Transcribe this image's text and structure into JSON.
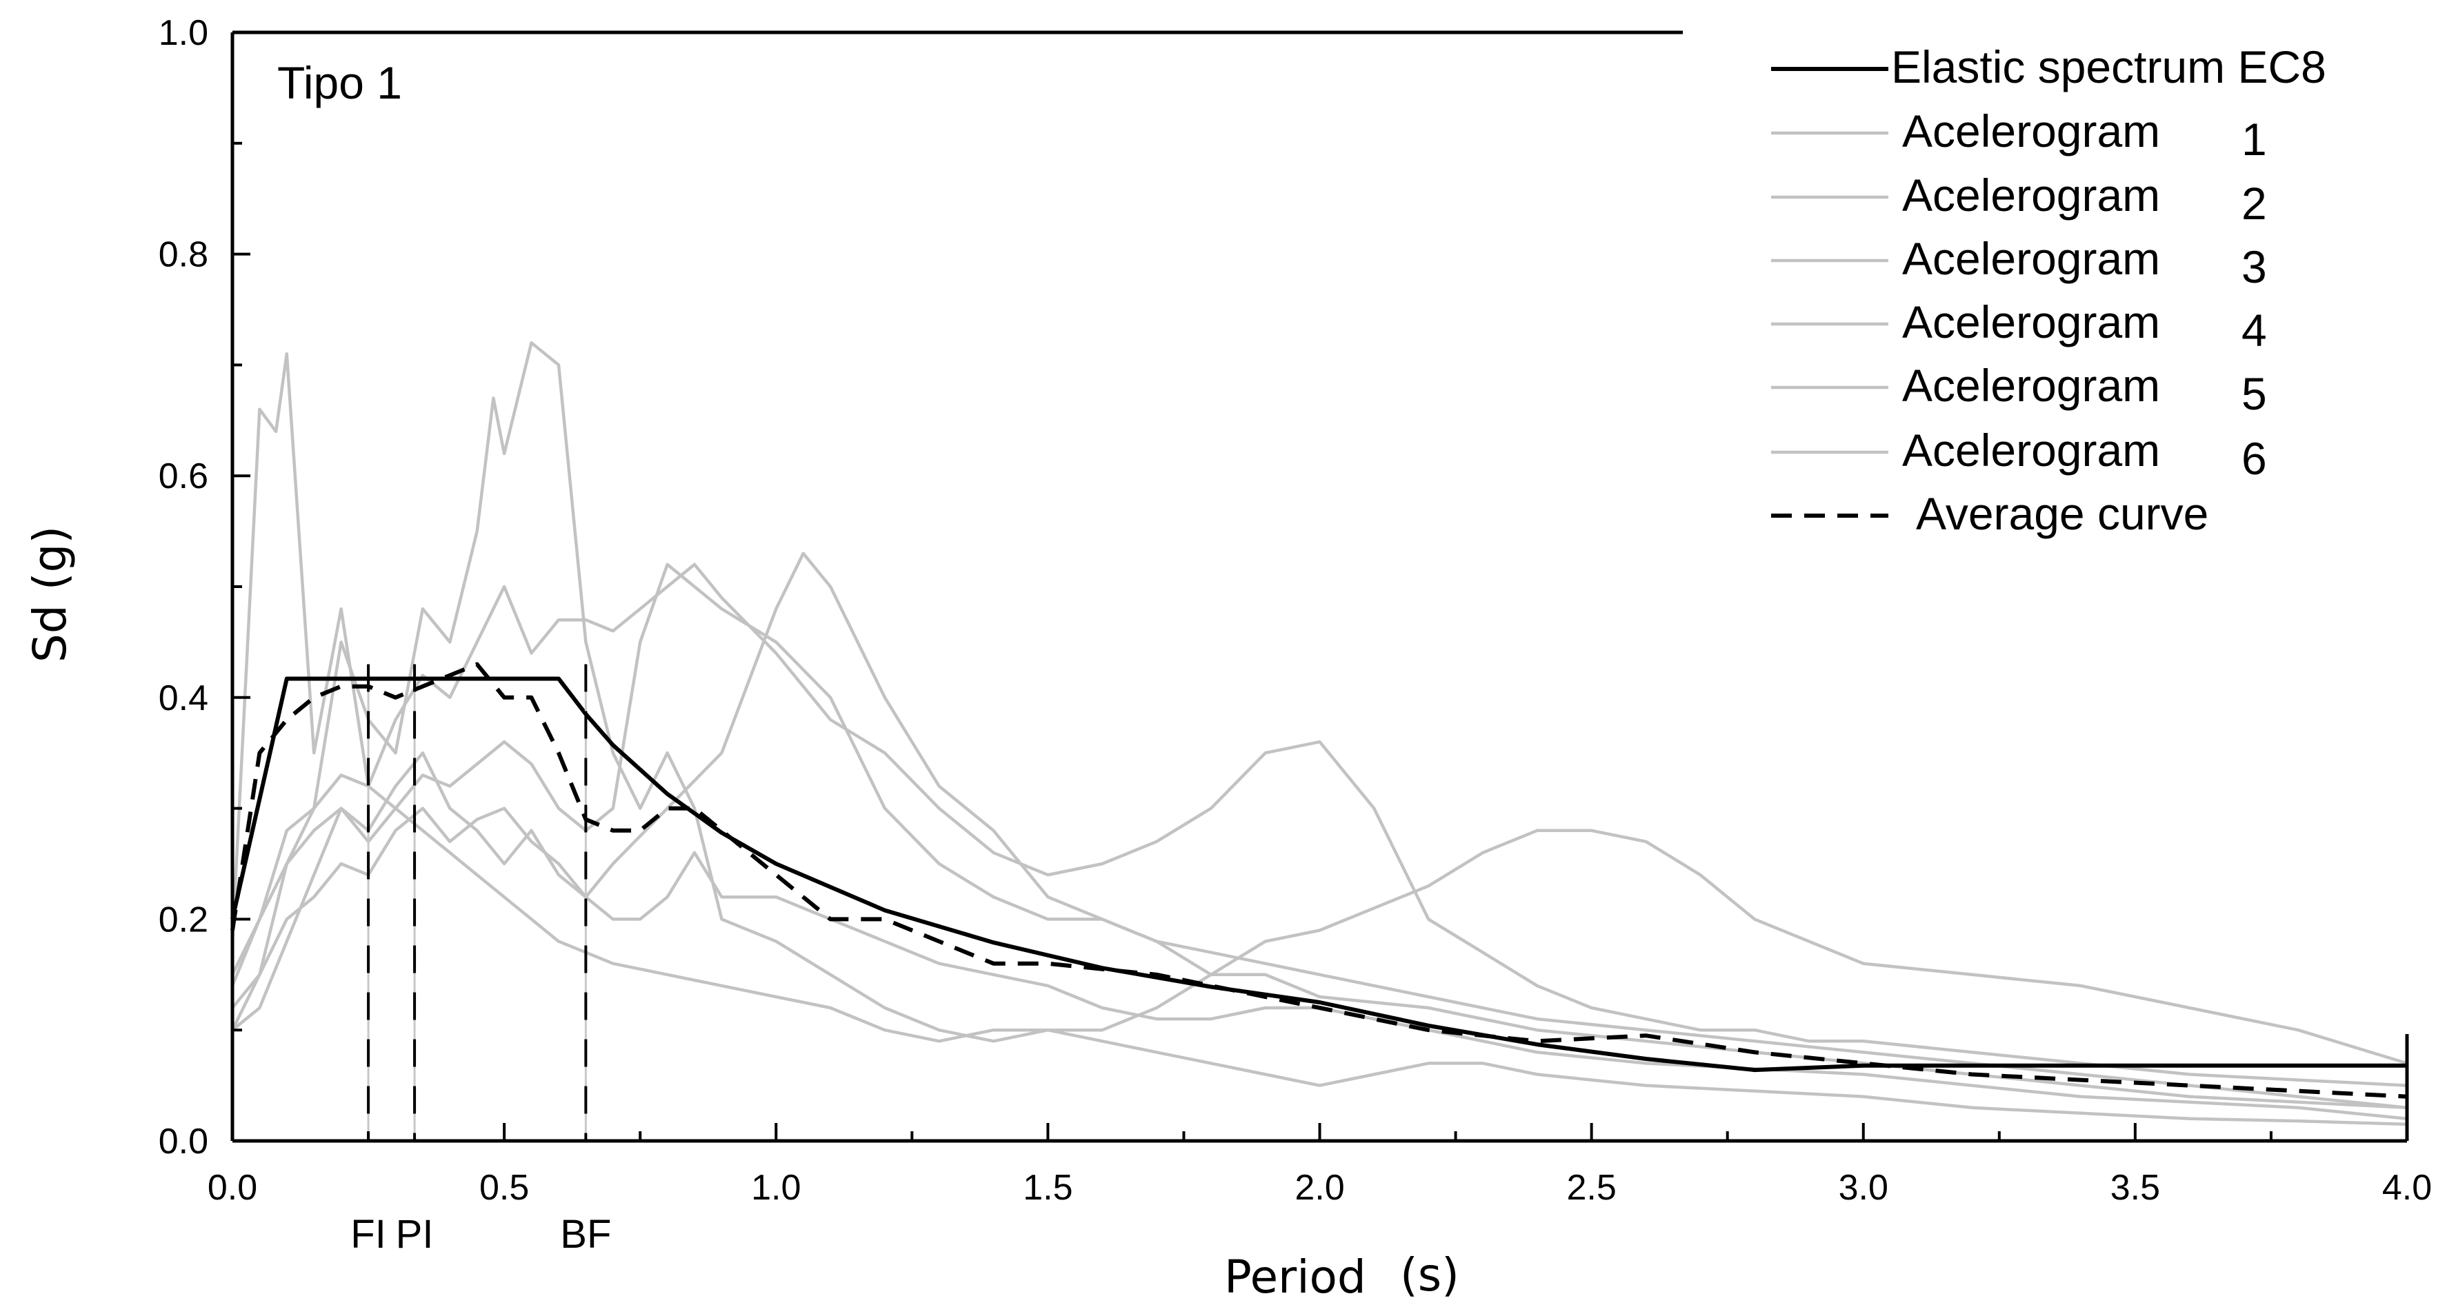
{
  "chart_data": {
    "type": "line",
    "panel_title": "Tipo 1",
    "xlabel": "Period",
    "xunit": "(s)",
    "ylabel": "Sd (g)",
    "xlim": [
      0,
      4
    ],
    "ylim": [
      0,
      1
    ],
    "xticks": [
      0,
      0.5,
      1,
      1.5,
      2,
      2.5,
      3,
      3.5,
      4
    ],
    "xtick_labels": [
      "0.0",
      "0.5",
      "1.0",
      "1.5",
      "2.0",
      "2.5",
      "3.0",
      "3.5",
      "4.0"
    ],
    "yticks": [
      0,
      0.2,
      0.4,
      0.6,
      0.8,
      1.0
    ],
    "ytick_labels": [
      "0.0",
      "0.2",
      "0.4",
      "0.6",
      "0.8",
      "1.0"
    ],
    "legend_position": "top-right",
    "markers": [
      {
        "label": "FI",
        "x": 0.25
      },
      {
        "label": "PI",
        "x": 0.335
      },
      {
        "label": "BF",
        "x": 0.65
      }
    ],
    "series": [
      {
        "name": "Elastic spectrum EC8",
        "legend_label": "Elastic spectrum EC8",
        "legend_suffix": "",
        "style": "solid",
        "color": "#000000",
        "x": [
          0,
          0.1,
          0.6,
          0.65,
          0.7,
          0.8,
          0.9,
          1.0,
          1.2,
          1.4,
          1.6,
          1.8,
          2.0,
          2.2,
          2.4,
          2.6,
          2.8,
          3.0,
          3.5,
          4.0
        ],
        "y": [
          0.2,
          0.417,
          0.417,
          0.385,
          0.357,
          0.313,
          0.278,
          0.25,
          0.208,
          0.179,
          0.156,
          0.139,
          0.125,
          0.104,
          0.087,
          0.074,
          0.064,
          0.068,
          0.068,
          0.068
        ]
      },
      {
        "name": "Acelerogram 1",
        "legend_label": "Acelerogram",
        "legend_suffix": "1",
        "style": "solid",
        "color": "#c2c2c2",
        "x": [
          0,
          0.05,
          0.1,
          0.15,
          0.2,
          0.25,
          0.3,
          0.35,
          0.4,
          0.45,
          0.5,
          0.55,
          0.6,
          0.65,
          0.7,
          0.75,
          0.8,
          0.85,
          0.9,
          1.0,
          1.1,
          1.2,
          1.3,
          1.4,
          1.5,
          1.6,
          1.7,
          1.8,
          1.9,
          2.0,
          2.1,
          2.2,
          2.3,
          2.4,
          2.5,
          2.6,
          2.7,
          2.8,
          2.9,
          3.0,
          3.2,
          3.4,
          3.6,
          3.8,
          4.0
        ],
        "y": [
          0.15,
          0.2,
          0.28,
          0.3,
          0.33,
          0.32,
          0.38,
          0.42,
          0.4,
          0.45,
          0.5,
          0.44,
          0.47,
          0.47,
          0.46,
          0.48,
          0.5,
          0.52,
          0.49,
          0.44,
          0.38,
          0.35,
          0.3,
          0.26,
          0.24,
          0.25,
          0.27,
          0.3,
          0.35,
          0.36,
          0.3,
          0.2,
          0.17,
          0.14,
          0.12,
          0.11,
          0.1,
          0.1,
          0.09,
          0.09,
          0.08,
          0.07,
          0.06,
          0.055,
          0.05
        ]
      },
      {
        "name": "Acelerogram 2",
        "legend_label": "Acelerogram",
        "legend_suffix": "2",
        "style": "solid",
        "color": "#c2c2c2",
        "x": [
          0,
          0.05,
          0.08,
          0.1,
          0.15,
          0.2,
          0.25,
          0.3,
          0.35,
          0.4,
          0.45,
          0.5,
          0.55,
          0.6,
          0.65,
          0.7,
          0.75,
          0.8,
          0.9,
          1.0,
          1.1,
          1.2,
          1.3,
          1.4,
          1.5,
          1.6,
          1.7,
          1.8,
          1.9,
          2.0,
          2.2,
          2.4,
          2.6,
          2.8,
          3.0,
          3.2,
          3.4,
          3.6,
          3.8,
          4.0
        ],
        "y": [
          0.18,
          0.66,
          0.64,
          0.71,
          0.35,
          0.48,
          0.32,
          0.3,
          0.33,
          0.32,
          0.34,
          0.36,
          0.34,
          0.3,
          0.28,
          0.3,
          0.45,
          0.52,
          0.48,
          0.45,
          0.4,
          0.3,
          0.25,
          0.22,
          0.2,
          0.2,
          0.18,
          0.15,
          0.15,
          0.13,
          0.12,
          0.1,
          0.09,
          0.08,
          0.07,
          0.06,
          0.05,
          0.04,
          0.035,
          0.03
        ]
      },
      {
        "name": "Acelerogram 3",
        "legend_label": "Acelerogram",
        "legend_suffix": "3",
        "style": "solid",
        "color": "#c2c2c2",
        "x": [
          0,
          0.05,
          0.1,
          0.15,
          0.2,
          0.25,
          0.3,
          0.35,
          0.4,
          0.45,
          0.48,
          0.5,
          0.55,
          0.6,
          0.65,
          0.7,
          0.75,
          0.8,
          0.85,
          0.9,
          1.0,
          1.1,
          1.2,
          1.3,
          1.4,
          1.5,
          1.6,
          1.7,
          1.8,
          1.9,
          2.0,
          2.1,
          2.2,
          2.3,
          2.4,
          2.5,
          2.6,
          2.7,
          2.8,
          3.0,
          3.2,
          3.4,
          3.6,
          3.8,
          4.0
        ],
        "y": [
          0.12,
          0.15,
          0.25,
          0.3,
          0.45,
          0.38,
          0.35,
          0.48,
          0.45,
          0.55,
          0.67,
          0.62,
          0.72,
          0.7,
          0.45,
          0.35,
          0.3,
          0.35,
          0.3,
          0.2,
          0.18,
          0.15,
          0.12,
          0.1,
          0.09,
          0.1,
          0.1,
          0.12,
          0.15,
          0.18,
          0.19,
          0.21,
          0.23,
          0.26,
          0.28,
          0.28,
          0.27,
          0.24,
          0.2,
          0.16,
          0.15,
          0.14,
          0.12,
          0.1,
          0.07
        ]
      },
      {
        "name": "Acelerogram 4",
        "legend_label": "Acelerogram",
        "legend_suffix": "4",
        "style": "solid",
        "color": "#c2c2c2",
        "x": [
          0,
          0.05,
          0.1,
          0.15,
          0.2,
          0.25,
          0.3,
          0.35,
          0.4,
          0.45,
          0.5,
          0.55,
          0.6,
          0.65,
          0.7,
          0.8,
          0.9,
          1.0,
          1.05,
          1.1,
          1.2,
          1.3,
          1.4,
          1.5,
          1.6,
          1.7,
          1.8,
          1.9,
          2.0,
          2.2,
          2.4,
          2.6,
          2.8,
          3.0,
          3.2,
          3.4,
          3.6,
          3.8,
          4.0
        ],
        "y": [
          0.14,
          0.2,
          0.25,
          0.28,
          0.3,
          0.28,
          0.32,
          0.35,
          0.3,
          0.28,
          0.25,
          0.28,
          0.24,
          0.22,
          0.25,
          0.3,
          0.35,
          0.48,
          0.53,
          0.5,
          0.4,
          0.32,
          0.28,
          0.22,
          0.2,
          0.18,
          0.17,
          0.16,
          0.15,
          0.13,
          0.11,
          0.1,
          0.09,
          0.08,
          0.07,
          0.06,
          0.05,
          0.04,
          0.03
        ]
      },
      {
        "name": "Acelerogram 5",
        "legend_label": "Acelerogram",
        "legend_suffix": "5",
        "style": "solid",
        "color": "#c2c2c2",
        "x": [
          0,
          0.05,
          0.1,
          0.15,
          0.2,
          0.25,
          0.3,
          0.35,
          0.4,
          0.45,
          0.5,
          0.55,
          0.6,
          0.65,
          0.7,
          0.75,
          0.8,
          0.85,
          0.9,
          1.0,
          1.1,
          1.2,
          1.3,
          1.4,
          1.5,
          1.6,
          1.7,
          1.8,
          1.9,
          2.0,
          2.2,
          2.4,
          2.6,
          2.8,
          3.0,
          3.2,
          3.4,
          3.6,
          3.8,
          4.0
        ],
        "y": [
          0.1,
          0.15,
          0.2,
          0.22,
          0.25,
          0.24,
          0.28,
          0.3,
          0.27,
          0.29,
          0.3,
          0.27,
          0.25,
          0.22,
          0.2,
          0.2,
          0.22,
          0.26,
          0.22,
          0.22,
          0.2,
          0.18,
          0.16,
          0.15,
          0.14,
          0.12,
          0.11,
          0.11,
          0.12,
          0.12,
          0.1,
          0.08,
          0.07,
          0.065,
          0.06,
          0.05,
          0.04,
          0.035,
          0.03,
          0.02
        ]
      },
      {
        "name": "Acelerogram 6",
        "legend_label": "Acelerogram",
        "legend_suffix": "6",
        "style": "solid",
        "color": "#c2c2c2",
        "x": [
          0,
          0.05,
          0.1,
          0.15,
          0.2,
          0.25,
          0.3,
          0.35,
          0.4,
          0.45,
          0.5,
          0.55,
          0.6,
          0.65,
          0.7,
          0.8,
          0.9,
          1.0,
          1.1,
          1.2,
          1.3,
          1.4,
          1.5,
          1.6,
          1.7,
          1.8,
          1.9,
          2.0,
          2.1,
          2.2,
          2.3,
          2.4,
          2.6,
          2.8,
          3.0,
          3.2,
          3.4,
          3.6,
          3.8,
          4.0
        ],
        "y": [
          0.1,
          0.12,
          0.18,
          0.24,
          0.3,
          0.27,
          0.3,
          0.28,
          0.26,
          0.24,
          0.22,
          0.2,
          0.18,
          0.17,
          0.16,
          0.15,
          0.14,
          0.13,
          0.12,
          0.1,
          0.09,
          0.1,
          0.1,
          0.09,
          0.08,
          0.07,
          0.06,
          0.05,
          0.06,
          0.07,
          0.07,
          0.06,
          0.05,
          0.045,
          0.04,
          0.03,
          0.025,
          0.02,
          0.018,
          0.015
        ]
      },
      {
        "name": "Average curve",
        "legend_label": "Average curve",
        "legend_suffix": "",
        "style": "dashed",
        "color": "#000000",
        "x": [
          0,
          0.05,
          0.1,
          0.15,
          0.2,
          0.25,
          0.3,
          0.35,
          0.4,
          0.45,
          0.5,
          0.55,
          0.6,
          0.65,
          0.7,
          0.75,
          0.8,
          0.85,
          0.9,
          1.0,
          1.1,
          1.2,
          1.3,
          1.4,
          1.5,
          1.6,
          1.7,
          1.8,
          1.9,
          2.0,
          2.2,
          2.4,
          2.6,
          2.8,
          3.0,
          3.2,
          3.4,
          3.6,
          3.8,
          4.0
        ],
        "y": [
          0.19,
          0.35,
          0.38,
          0.4,
          0.41,
          0.41,
          0.4,
          0.41,
          0.42,
          0.43,
          0.4,
          0.4,
          0.35,
          0.29,
          0.28,
          0.28,
          0.3,
          0.3,
          0.28,
          0.24,
          0.2,
          0.2,
          0.18,
          0.16,
          0.16,
          0.155,
          0.15,
          0.14,
          0.13,
          0.12,
          0.1,
          0.09,
          0.095,
          0.08,
          0.07,
          0.06,
          0.055,
          0.05,
          0.045,
          0.04
        ]
      }
    ]
  }
}
